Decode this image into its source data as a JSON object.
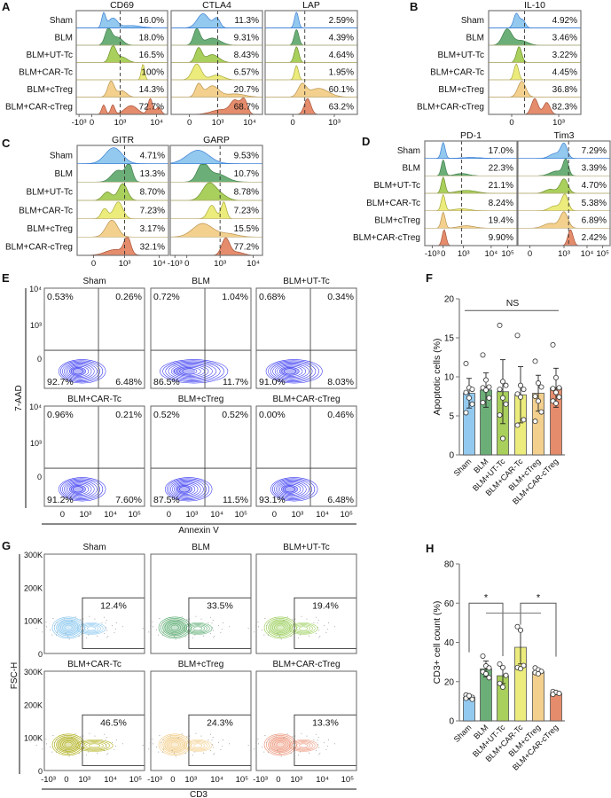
{
  "groups": [
    "Sham",
    "BLM",
    "BLM+UT-Tc",
    "BLM+CAR-Tc",
    "BLM+cTreg",
    "BLM+CAR-cTreg"
  ],
  "group_colors": [
    "#93c9ee",
    "#6cae78",
    "#a9cf5c",
    "#ecec7c",
    "#f3d08e",
    "#e58c6c"
  ],
  "group_stroke_colors": [
    "#3c7fd6",
    "#3f7f4c",
    "#6f8f2c",
    "#a9a83a",
    "#b89350",
    "#a8543a"
  ],
  "panels": {
    "A": {
      "letter": "A",
      "markers": [
        {
          "name": "CD69",
          "values": [
            "16.0%",
            "18.0%",
            "16.5%",
            "100%",
            "14.3%",
            "72.7%"
          ],
          "ticks": [
            "-10³",
            "0",
            "10³",
            "10⁴"
          ]
        },
        {
          "name": "CTLA4",
          "values": [
            "11.3%",
            "9.31%",
            "8.43%",
            "6.57%",
            "20.7%",
            "68.7%"
          ],
          "ticks": [
            "0",
            "10³",
            "10⁴"
          ]
        },
        {
          "name": "LAP",
          "values": [
            "2.59%",
            "4.39%",
            "4.64%",
            "1.95%",
            "60.1%",
            "63.2%"
          ],
          "ticks": [
            "0",
            "10³"
          ]
        }
      ]
    },
    "B": {
      "letter": "B",
      "markers": [
        {
          "name": "IL-10",
          "values": [
            "4.92%",
            "3.46%",
            "3.22%",
            "4.45%",
            "36.8%",
            "82.3%"
          ],
          "ticks": [
            "0",
            "10³"
          ]
        }
      ]
    },
    "C": {
      "letter": "C",
      "markers": [
        {
          "name": "GITR",
          "values": [
            "4.71%",
            "13.3%",
            "8.70%",
            "7.23%",
            "3.17%",
            "32.1%"
          ],
          "ticks": [
            "0",
            "10³",
            "10⁴"
          ]
        },
        {
          "name": "GARP",
          "values": [
            "9.53%",
            "10.7%",
            "8.78%",
            "7.23%",
            "15.5%",
            "77.2%"
          ],
          "ticks": [
            "-10³",
            "0",
            "10³",
            "10⁴"
          ]
        }
      ]
    },
    "D": {
      "letter": "D",
      "markers": [
        {
          "name": "PD-1",
          "values": [
            "17.0%",
            "22.3%",
            "21.1%",
            "8.24%",
            "19.4%",
            "9.90%"
          ],
          "ticks": [
            "-10³",
            "0",
            "10³",
            "10⁴",
            "10⁵"
          ]
        },
        {
          "name": "Tim3",
          "values": [
            "7.29%",
            "3.39%",
            "4.70%",
            "5.38%",
            "6.89%",
            "2.42%"
          ],
          "ticks": [
            "0",
            "10³",
            "10⁴",
            "10⁵"
          ]
        }
      ]
    },
    "E": {
      "letter": "E",
      "y_label": "7-AAD",
      "x_label": "Annexin V",
      "y_ticks": [
        "10⁴",
        "10³",
        "0"
      ],
      "x_ticks": [
        "0",
        "10³",
        "10⁴",
        "10⁵"
      ],
      "contour_color": "#2f2ff2",
      "plots": [
        {
          "title": "Sham",
          "ul": "0.53%",
          "ur": "0.26%",
          "ll": "92.7%",
          "lr": "6.48%"
        },
        {
          "title": "BLM",
          "ul": "0.72%",
          "ur": "1.04%",
          "ll": "86.5%",
          "lr": "11.7%"
        },
        {
          "title": "BLM+UT-Tc",
          "ul": "0.68%",
          "ur": "0.34%",
          "ll": "91.0%",
          "lr": "8.03%"
        },
        {
          "title": "BLM+CAR-Tc",
          "ul": "0.96%",
          "ur": "0.21%",
          "ll": "91.2%",
          "lr": "7.60%"
        },
        {
          "title": "BLM+cTreg",
          "ul": "0.52%",
          "ur": "0.52%",
          "ll": "87.5%",
          "lr": "11.5%"
        },
        {
          "title": "BLM+CAR-cTreg",
          "ul": "0.00%",
          "ur": "0.46%",
          "ll": "93.1%",
          "lr": "6.48%"
        }
      ]
    },
    "F": {
      "letter": "F"
    },
    "G": {
      "letter": "G",
      "y_label": "FSC-H",
      "x_label": "CD3",
      "y_ticks": [
        "300K",
        "200K",
        "100K",
        "0"
      ],
      "x_ticks": [
        "-10³",
        "0",
        "10³",
        "10⁴",
        "10⁵"
      ],
      "plots": [
        {
          "title": "Sham",
          "gate": "12.4%"
        },
        {
          "title": "BLM",
          "gate": "33.5%"
        },
        {
          "title": "BLM+UT-Tc",
          "gate": "19.4%"
        },
        {
          "title": "BLM+CAR-Tc",
          "gate": "46.5%"
        },
        {
          "title": "BLM+cTreg",
          "gate": "24.3%"
        },
        {
          "title": "BLM+CAR-cTreg",
          "gate": "13.3%"
        }
      ],
      "contour_colors": [
        "#8cc8f0",
        "#5fae75",
        "#9fd060",
        "#b3b322",
        "#f3cf8c",
        "#ee9a80"
      ]
    },
    "H": {
      "letter": "H"
    }
  },
  "chart_data": [
    {
      "panel": "F",
      "type": "bar",
      "categories": [
        "Sham",
        "BLM",
        "BLM+UT-Tc",
        "BLM+CAR-Tc",
        "BLM+cTreg",
        "BLM+CAR-cTreg"
      ],
      "values": [
        7.9,
        8.3,
        8.1,
        7.7,
        7.9,
        8.6
      ],
      "sd": [
        1.9,
        2.2,
        4.1,
        3.6,
        2.3,
        2.5
      ],
      "points": [
        [
          11.7,
          8.6,
          8.4,
          8.0,
          7.3,
          6.5,
          5.4
        ],
        [
          12.8,
          9.6,
          8.7,
          8.6,
          8.3,
          7.3,
          6.7
        ],
        [
          16.6,
          9.4,
          8.9,
          8.4,
          7.3,
          6.5,
          5.1,
          2.1
        ],
        [
          15.3,
          8.9,
          8.4,
          7.8,
          7.4,
          4.5,
          3.8
        ],
        [
          12.0,
          9.2,
          8.7,
          7.5,
          6.9,
          5.5,
          4.3
        ],
        [
          14.1,
          9.9,
          8.6,
          8.5,
          8.0,
          7.4,
          6.9,
          6.6
        ]
      ],
      "ylabel": "Apoptotic cells (%)",
      "ylim": [
        0,
        20
      ],
      "yticks": [
        "0",
        "5",
        "10",
        "15",
        "20"
      ],
      "annotations": [
        {
          "text": "NS",
          "from": "Sham",
          "to": "BLM+CAR-cTreg",
          "y": 18.5
        }
      ]
    },
    {
      "panel": "H",
      "type": "bar",
      "categories": [
        "Sham",
        "BLM",
        "BLM+UT-Tc",
        "BLM+CAR-Tc",
        "BLM+cTreg",
        "BLM+CAR-cTreg"
      ],
      "values": [
        12,
        26.5,
        23,
        37.5,
        25,
        14
      ],
      "sd": [
        1,
        4,
        4,
        8.5,
        1.2,
        0.7
      ],
      "points": [
        [
          13.2,
          12.6,
          12,
          11.5,
          12.8,
          11
        ],
        [
          33,
          28,
          27,
          25,
          24,
          22
        ],
        [
          29,
          27.2,
          23.2,
          19.1,
          17.2
        ],
        [
          48,
          46.2,
          28.2,
          27.2,
          26.6
        ],
        [
          27,
          26,
          25.2,
          24.6,
          24
        ],
        [
          15,
          14.5,
          14,
          13.5
        ]
      ],
      "ylabel": "CD3+ cell count (%)",
      "ylim": [
        0,
        80
      ],
      "yticks": [
        "0",
        "20",
        "40",
        "60",
        "80"
      ],
      "annotations": [
        {
          "text": "*",
          "from": "Sham",
          "to": "BLM+UT-Tc",
          "y": 60
        },
        {
          "text": "*",
          "from": "BLM+CAR-Tc",
          "to": "BLM+CAR-cTreg",
          "y": 60
        }
      ]
    }
  ]
}
